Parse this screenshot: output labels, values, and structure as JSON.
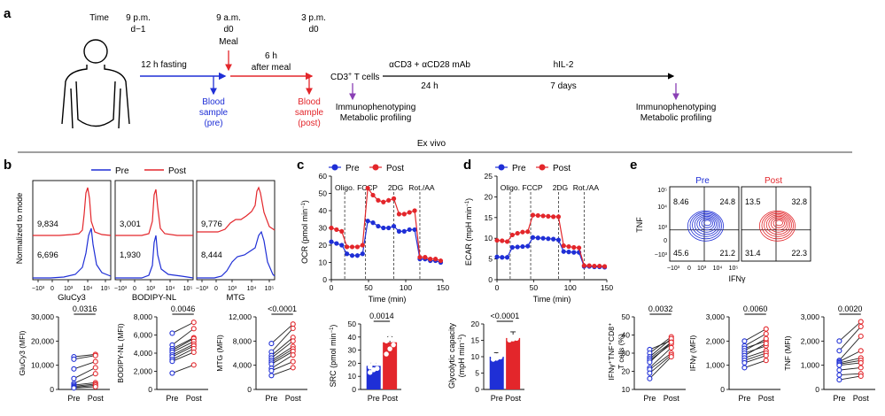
{
  "colors": {
    "pre": "#1f2fd6",
    "post": "#e3262b",
    "purple": "#8a3fb5",
    "black": "#000000",
    "gray": "#666666"
  },
  "panel_letters": {
    "a": "a",
    "b": "b",
    "c": "c",
    "d": "d",
    "e": "e"
  },
  "panel_a": {
    "time_label": "Time",
    "times": [
      {
        "line1": "9 p.m.",
        "line2": "d−1"
      },
      {
        "line1": "9 a.m.",
        "line2": "d0"
      },
      {
        "line1": "3 p.m.",
        "line2": "d0"
      }
    ],
    "meal": "Meal",
    "fasting": "12 h fasting",
    "after_meal_1": "6 h",
    "after_meal_2": "after meal",
    "blood_pre": [
      "Blood",
      "sample",
      "(pre)"
    ],
    "blood_post": [
      "Blood",
      "sample",
      "(post)"
    ],
    "cd3_main": "CD3",
    "cd3_sup": "+",
    "cd3_rest": " T cells",
    "stim": "αCD3 + αCD28 mAb",
    "stim_time": "24 h",
    "hil2": "hIL-2",
    "hil2_time": "7 days",
    "immuno": "Immunophenotyping",
    "metab": "Metabolic profiling",
    "ex_vivo": "Ex vivo"
  },
  "legend": {
    "pre": "Pre",
    "post": "Post"
  },
  "panel_b": {
    "ylabel": "Normalized to mode",
    "histograms": [
      {
        "xlabel": "GluCy3",
        "post_mfi": "9,834",
        "pre_mfi": "6,696",
        "ticks": [
          "−10³",
          "0",
          "10³",
          "10⁴",
          "10⁵"
        ]
      },
      {
        "xlabel": "BODIPY-NL",
        "post_mfi": "3,001",
        "pre_mfi": "1,930",
        "ticks": [
          "−10³",
          "0",
          "10³",
          "10⁴",
          "10⁵"
        ]
      },
      {
        "xlabel": "MTG",
        "post_mfi": "9,776",
        "pre_mfi": "8,444",
        "ticks": [
          "−10³",
          "0",
          "10³",
          "10⁴",
          "10⁵"
        ]
      }
    ]
  },
  "panel_c_ylabel": [
    "OCR (pmol min",
    "−1",
    ")"
  ],
  "panel_d_ylabel": [
    "ECAR (mpH min",
    "−1",
    ")"
  ],
  "time_xlabel": "Time (min)",
  "injections": [
    "Oligo.",
    "FCCP",
    "2DG",
    "Rot./AA"
  ],
  "src_ylabel": [
    "SRC (pmol min",
    "−1",
    ")"
  ],
  "glyco_ylabel": [
    "Glycolytic capacity",
    "(mpH min",
    "−1",
    ")"
  ],
  "panel_e": {
    "pre_title": "Pre",
    "post_title": "Post",
    "tnf_label": "TNF",
    "ifng_label": "IFNγ",
    "pre_quads": [
      "8.46",
      "24.8",
      "45.6",
      "21.2"
    ],
    "post_quads": [
      "13.5",
      "32.8",
      "31.4",
      "22.3"
    ],
    "y_ticks": [
      "10⁵",
      "10⁴",
      "10³",
      "0",
      "−10³"
    ],
    "x_ticks": [
      "−10³",
      "0",
      "10³",
      "10⁴",
      "10⁵"
    ],
    "pct_ylabel_1": "IFNγ⁺TNF⁺CD8⁺",
    "pct_ylabel_2": "T cells (%)",
    "ifng_mfi_ylabel": "IFNγ (MFI)",
    "tnf_mfi_ylabel": "TNF (MFI)"
  },
  "chart_data": [
    {
      "type": "line",
      "panel": "c",
      "title": "",
      "xlabel": "Time (min)",
      "ylabel": "OCR (pmol min⁻¹)",
      "x": [
        0,
        7,
        14,
        21,
        28,
        35,
        42,
        49,
        56,
        63,
        70,
        77,
        84,
        91,
        98,
        105,
        112,
        119,
        126,
        133,
        140,
        147
      ],
      "xlim": [
        0,
        150
      ],
      "ylim": [
        0,
        60
      ],
      "xticks": [
        0,
        50,
        100,
        150
      ],
      "yticks": [
        0,
        10,
        20,
        30,
        40,
        50,
        60
      ],
      "series": [
        {
          "name": "Pre",
          "values": [
            22,
            21,
            20,
            15,
            14,
            14,
            15,
            34,
            33,
            31,
            30,
            30,
            31,
            28,
            28,
            29,
            29,
            12,
            12,
            11,
            11,
            10
          ]
        },
        {
          "name": "Post",
          "values": [
            30,
            29,
            28,
            19,
            19,
            19,
            20,
            53,
            49,
            46,
            45,
            46,
            47,
            38,
            38,
            39,
            40,
            13,
            13,
            12,
            12,
            11
          ]
        }
      ]
    },
    {
      "type": "line",
      "panel": "d",
      "title": "",
      "xlabel": "Time (min)",
      "ylabel": "ECAR (mpH min⁻¹)",
      "x": [
        0,
        7,
        14,
        21,
        28,
        35,
        42,
        49,
        56,
        63,
        70,
        77,
        84,
        91,
        98,
        105,
        112,
        119,
        126,
        133,
        140,
        147
      ],
      "xlim": [
        0,
        150
      ],
      "ylim": [
        0,
        25
      ],
      "xticks": [
        0,
        50,
        100,
        150
      ],
      "yticks": [
        0,
        5,
        10,
        15,
        20,
        25
      ],
      "series": [
        {
          "name": "Pre",
          "values": [
            5.5,
            5.4,
            5.4,
            7.8,
            7.9,
            8.0,
            8.1,
            10.2,
            10.1,
            10.0,
            9.9,
            9.8,
            9.6,
            6.8,
            6.7,
            6.6,
            6.6,
            3.2,
            3.2,
            3.1,
            3.1,
            3.0
          ]
        },
        {
          "name": "Post",
          "values": [
            9.5,
            9.4,
            9.2,
            10.8,
            11.2,
            11.5,
            11.6,
            15.6,
            15.5,
            15.4,
            15.3,
            15.2,
            15.2,
            8.2,
            8.0,
            7.8,
            7.7,
            3.4,
            3.4,
            3.3,
            3.3,
            3.2
          ]
        }
      ]
    },
    {
      "type": "scatter",
      "panel": "b-paired-GluCy3",
      "ylabel": "GluCy3 (MFI)",
      "categories": [
        "Pre",
        "Post"
      ],
      "ylim": [
        0,
        30000
      ],
      "yticks": [
        0,
        10000,
        20000,
        30000
      ],
      "ytick_labels": [
        "0",
        "10,000",
        "20,000",
        "30,000"
      ],
      "p_value": "0.0316",
      "pairs": [
        [
          13500,
          14500
        ],
        [
          12500,
          14000
        ],
        [
          8500,
          11500
        ],
        [
          4500,
          9000
        ],
        [
          2500,
          6500
        ],
        [
          1800,
          2800
        ],
        [
          1300,
          2200
        ],
        [
          900,
          1700
        ],
        [
          600,
          1100
        ]
      ]
    },
    {
      "type": "scatter",
      "panel": "b-paired-BODIPY",
      "ylabel": "BODIPY-NL (MFI)",
      "categories": [
        "Pre",
        "Post"
      ],
      "ylim": [
        0,
        8000
      ],
      "yticks": [
        0,
        2000,
        4000,
        6000,
        8000
      ],
      "ytick_labels": [
        "0",
        "2,000",
        "4,000",
        "6,000",
        "8,000"
      ],
      "p_value": "0.0046",
      "pairs": [
        [
          6200,
          7400
        ],
        [
          4900,
          6700
        ],
        [
          4500,
          5700
        ],
        [
          4300,
          5600
        ],
        [
          4100,
          5300
        ],
        [
          3800,
          5000
        ],
        [
          3600,
          4800
        ],
        [
          3300,
          4500
        ],
        [
          3100,
          4100
        ],
        [
          1800,
          2700
        ]
      ]
    },
    {
      "type": "scatter",
      "panel": "b-paired-MTG",
      "ylabel": "MTG (MFI)",
      "categories": [
        "Pre",
        "Post"
      ],
      "ylim": [
        0,
        12000
      ],
      "yticks": [
        0,
        4000,
        8000,
        12000
      ],
      "ytick_labels": [
        "0",
        "4,000",
        "8,000",
        "12,000"
      ],
      "p_value": "<0.0001",
      "pairs": [
        [
          7600,
          10800
        ],
        [
          6200,
          10100
        ],
        [
          5600,
          8600
        ],
        [
          5200,
          8000
        ],
        [
          4800,
          7100
        ],
        [
          4500,
          6700
        ],
        [
          4200,
          6300
        ],
        [
          3500,
          5700
        ],
        [
          3100,
          4600
        ],
        [
          2300,
          3600
        ]
      ]
    },
    {
      "type": "bar",
      "panel": "c-SRC",
      "ylabel": "SRC (pmol min⁻¹)",
      "categories": [
        "Pre",
        "Post"
      ],
      "values": [
        18,
        36
      ],
      "points": [
        [
          13,
          15,
          16,
          17,
          20,
          22,
          24
        ],
        [
          27,
          31,
          34,
          37,
          39,
          43,
          47
        ]
      ],
      "ylim": [
        0,
        50
      ],
      "yticks": [
        0,
        10,
        20,
        30,
        40,
        50
      ],
      "p_value": "0.0014"
    },
    {
      "type": "bar",
      "panel": "d-glyco",
      "ylabel": "Glycolytic capacity (mpH min⁻¹)",
      "categories": [
        "Pre",
        "Post"
      ],
      "values": [
        10,
        15.7
      ],
      "points": [
        [
          9.2,
          9.5,
          9.9,
          10.0,
          10.3,
          10.8
        ],
        [
          15.1,
          15.4,
          15.6,
          15.8,
          16.0,
          16.3
        ]
      ],
      "ylim": [
        0,
        20
      ],
      "yticks": [
        0,
        5,
        10,
        15,
        20
      ],
      "p_value": "<0.0001"
    },
    {
      "type": "scatter",
      "panel": "e-paired-pct",
      "ylabel": "IFNγ⁺TNF⁺CD8⁺ T cells (%)",
      "categories": [
        "Pre",
        "Post"
      ],
      "ylim": [
        10,
        50
      ],
      "yticks": [
        10,
        20,
        30,
        40,
        50
      ],
      "p_value": "0.0032",
      "pairs": [
        [
          32,
          37
        ],
        [
          30,
          39
        ],
        [
          28,
          38
        ],
        [
          27,
          36
        ],
        [
          26,
          35
        ],
        [
          25,
          36
        ],
        [
          22,
          33
        ],
        [
          21,
          30
        ],
        [
          19,
          29
        ],
        [
          16,
          28
        ]
      ]
    },
    {
      "type": "scatter",
      "panel": "e-paired-IFNg",
      "ylabel": "IFNγ (MFI)",
      "categories": [
        "Pre",
        "Post"
      ],
      "ylim": [
        0,
        3000
      ],
      "yticks": [
        0,
        1000,
        2000,
        3000
      ],
      "ytick_labels": [
        "0",
        "1,000",
        "2,000",
        "3,000"
      ],
      "p_value": "0.0060",
      "pairs": [
        [
          2000,
          2500
        ],
        [
          1800,
          2300
        ],
        [
          1700,
          2000
        ],
        [
          1600,
          2100
        ],
        [
          1500,
          1800
        ],
        [
          1400,
          1900
        ],
        [
          1300,
          1600
        ],
        [
          1200,
          1500
        ],
        [
          1100,
          1400
        ],
        [
          900,
          1200
        ]
      ]
    },
    {
      "type": "scatter",
      "panel": "e-paired-TNF",
      "ylabel": "TNF (MFI)",
      "categories": [
        "Pre",
        "Post"
      ],
      "ylim": [
        0,
        3000
      ],
      "yticks": [
        0,
        1000,
        2000,
        3000
      ],
      "ytick_labels": [
        "0",
        "1,000",
        "2,000",
        "3,000"
      ],
      "p_value": "0.0020",
      "pairs": [
        [
          2000,
          2800
        ],
        [
          1600,
          2600
        ],
        [
          1200,
          2200
        ],
        [
          1150,
          1600
        ],
        [
          1100,
          1300
        ],
        [
          1050,
          1200
        ],
        [
          1000,
          1100
        ],
        [
          800,
          900
        ],
        [
          600,
          650
        ],
        [
          400,
          550
        ]
      ]
    }
  ]
}
